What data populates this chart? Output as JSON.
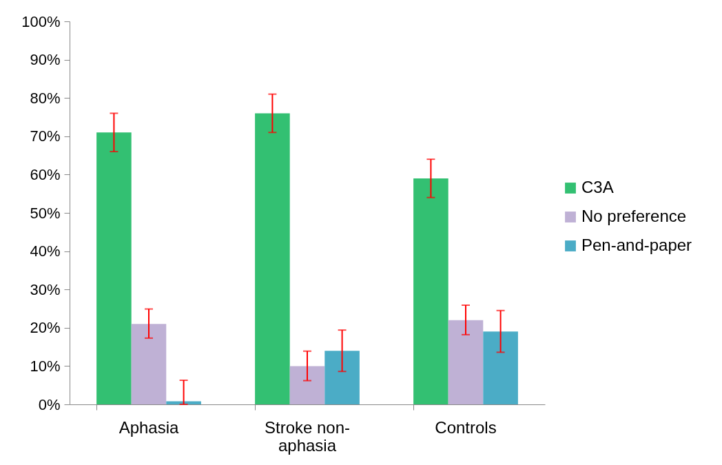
{
  "chart_data": {
    "type": "bar",
    "categories": [
      "Aphasia",
      "Stroke non-aphasia",
      "Controls"
    ],
    "series": [
      {
        "name": "C3A",
        "color": "#33c072",
        "values": [
          71,
          76,
          59
        ],
        "errors": [
          [
            66,
            76
          ],
          [
            71,
            81
          ],
          [
            54,
            64
          ]
        ]
      },
      {
        "name": "No preference",
        "color": "#bfb1d5",
        "values": [
          21,
          10,
          22
        ],
        "errors": [
          [
            17.3,
            24.9
          ],
          [
            6.2,
            13.9
          ],
          [
            18.2,
            25.9
          ]
        ]
      },
      {
        "name": "Pen-and-paper",
        "color": "#4bacc6",
        "values": [
          0.8,
          14,
          19
        ],
        "errors": [
          [
            0,
            6.3
          ],
          [
            8.6,
            19.4
          ],
          [
            13.6,
            24.5
          ]
        ]
      }
    ],
    "ylim": [
      0,
      100
    ],
    "yticks": [
      {
        "value": 0,
        "label": "0%"
      },
      {
        "value": 10,
        "label": "10%"
      },
      {
        "value": 20,
        "label": "20%"
      },
      {
        "value": 30,
        "label": "30%"
      },
      {
        "value": 40,
        "label": "40%"
      },
      {
        "value": 50,
        "label": "50%"
      },
      {
        "value": 60,
        "label": "60%"
      },
      {
        "value": 70,
        "label": "70%"
      },
      {
        "value": 80,
        "label": "80%"
      },
      {
        "value": 90,
        "label": "90%"
      },
      {
        "value": 100,
        "label": "100%"
      }
    ],
    "grid": false,
    "legend": "right"
  }
}
